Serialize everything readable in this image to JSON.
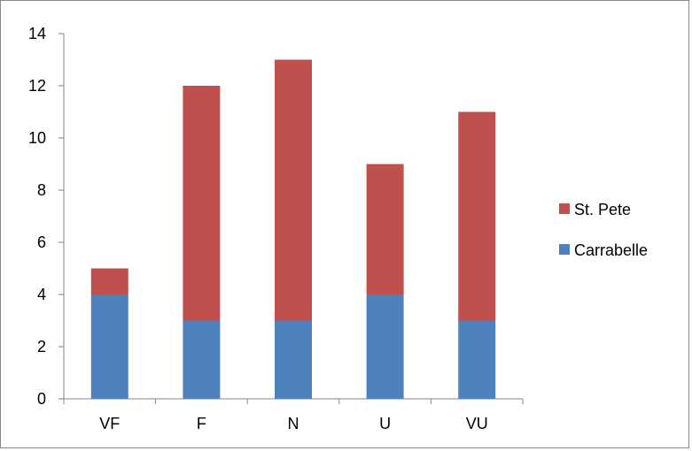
{
  "chart_data": {
    "type": "bar",
    "stacked": true,
    "categories": [
      "VF",
      "F",
      "N",
      "U",
      "VU"
    ],
    "series": [
      {
        "name": "Carrabelle",
        "values": [
          4,
          3,
          3,
          4,
          3
        ],
        "color": "#4F81BD"
      },
      {
        "name": "St. Pete",
        "values": [
          1,
          9,
          10,
          5,
          8
        ],
        "color": "#C0504D"
      }
    ],
    "ylim": [
      0,
      14
    ],
    "yticks": [
      0,
      2,
      4,
      6,
      8,
      10,
      12,
      14
    ],
    "grid": false,
    "legend_position": "right",
    "legend_order": [
      "St. Pete",
      "Carrabelle"
    ],
    "title": "",
    "xlabel": "",
    "ylabel": ""
  }
}
